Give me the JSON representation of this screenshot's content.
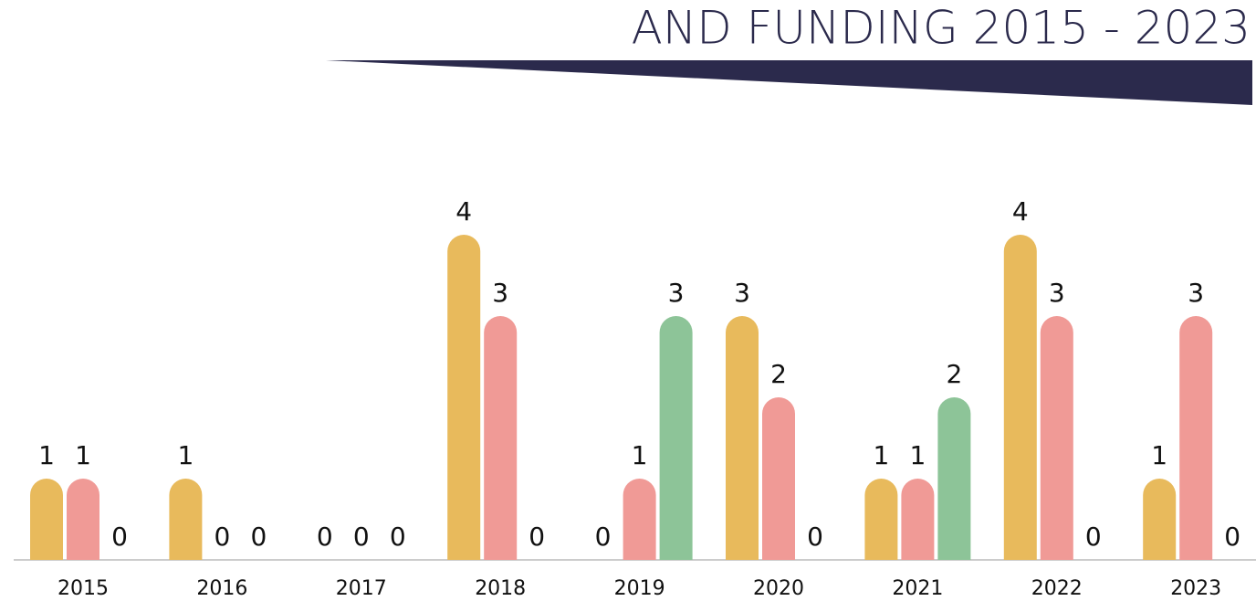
{
  "chart_data": {
    "type": "bar",
    "title": "AND FUNDING 2015 - 2023",
    "categories": [
      "2015",
      "2016",
      "2017",
      "2018",
      "2019",
      "2020",
      "2021",
      "2022",
      "2023"
    ],
    "series": [
      {
        "color": "#e8ba5c",
        "values": [
          1,
          1,
          0,
          4,
          0,
          3,
          1,
          4,
          1
        ]
      },
      {
        "color": "#f09a96",
        "values": [
          1,
          0,
          0,
          3,
          1,
          2,
          1,
          3,
          3
        ]
      },
      {
        "color": "#8dc498",
        "values": [
          0,
          0,
          0,
          0,
          3,
          0,
          2,
          0,
          0
        ]
      }
    ]
  }
}
